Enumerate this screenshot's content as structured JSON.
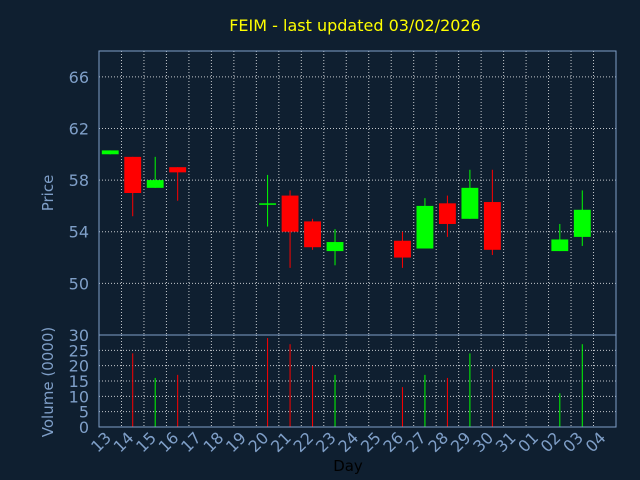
{
  "title": "FEIM - last updated 03/02/2026",
  "colors": {
    "background": "#0f1f30",
    "panel_border": "#7f9fc8",
    "grid": "#ffffff",
    "up": "#00ff00",
    "down": "#ff0000",
    "title": "#ffff00",
    "tick": "#7f9fc8",
    "x_label": "#000000"
  },
  "chart_data": [
    {
      "type": "candlestick",
      "panel": "price",
      "ylabel": "Price",
      "ylim": [
        46,
        68
      ],
      "yticks": [
        50,
        54,
        58,
        62,
        66
      ],
      "grid": true,
      "candles": [
        {
          "day": "13",
          "open": 60.0,
          "close": 60.3,
          "high": 60.3,
          "low": 60.0
        },
        {
          "day": "14",
          "open": 59.8,
          "close": 57.0,
          "high": 59.8,
          "low": 55.2
        },
        {
          "day": "15",
          "open": 57.4,
          "close": 58.0,
          "high": 59.8,
          "low": 57.4
        },
        {
          "day": "16",
          "open": 59.0,
          "close": 58.6,
          "high": 59.0,
          "low": 56.4
        },
        {
          "day": "20",
          "open": 56.2,
          "close": 56.2,
          "high": 58.4,
          "low": 54.4
        },
        {
          "day": "21",
          "open": 56.8,
          "close": 54.0,
          "high": 57.2,
          "low": 51.2
        },
        {
          "day": "22",
          "open": 54.8,
          "close": 52.8,
          "high": 55.0,
          "low": 52.6
        },
        {
          "day": "23",
          "open": 52.5,
          "close": 53.2,
          "high": 54.2,
          "low": 51.4
        },
        {
          "day": "26",
          "open": 53.3,
          "close": 52.0,
          "high": 54.0,
          "low": 51.2
        },
        {
          "day": "27",
          "open": 52.7,
          "close": 56.0,
          "high": 56.6,
          "low": 52.7
        },
        {
          "day": "28",
          "open": 56.2,
          "close": 54.6,
          "high": 56.8,
          "low": 53.6
        },
        {
          "day": "29",
          "open": 55.0,
          "close": 57.4,
          "high": 58.8,
          "low": 55.0
        },
        {
          "day": "30",
          "open": 56.3,
          "close": 52.6,
          "high": 58.8,
          "low": 52.2
        },
        {
          "day": "02",
          "open": 52.5,
          "close": 53.4,
          "high": 54.6,
          "low": 52.5
        },
        {
          "day": "03",
          "open": 53.6,
          "close": 55.7,
          "high": 57.2,
          "low": 52.9
        }
      ]
    },
    {
      "type": "bar",
      "panel": "volume",
      "ylabel": "Volume (0000)",
      "ylim": [
        0,
        30
      ],
      "yticks": [
        0,
        5,
        10,
        15,
        20,
        25,
        30
      ],
      "grid": true,
      "xlabel": "Day",
      "categories": [
        "13",
        "14",
        "15",
        "16",
        "17",
        "18",
        "19",
        "20",
        "21",
        "22",
        "23",
        "24",
        "25",
        "26",
        "27",
        "28",
        "29",
        "30",
        "31",
        "01",
        "02",
        "03",
        "04"
      ],
      "bars": [
        {
          "day": "14",
          "value": 24,
          "direction": "down"
        },
        {
          "day": "15",
          "value": 16,
          "direction": "up"
        },
        {
          "day": "16",
          "value": 17,
          "direction": "down"
        },
        {
          "day": "20",
          "value": 29,
          "direction": "down"
        },
        {
          "day": "21",
          "value": 27,
          "direction": "down"
        },
        {
          "day": "22",
          "value": 20,
          "direction": "down"
        },
        {
          "day": "23",
          "value": 17,
          "direction": "up"
        },
        {
          "day": "26",
          "value": 13,
          "direction": "down"
        },
        {
          "day": "27",
          "value": 17,
          "direction": "up"
        },
        {
          "day": "28",
          "value": 16,
          "direction": "down"
        },
        {
          "day": "29",
          "value": 24,
          "direction": "up"
        },
        {
          "day": "30",
          "value": 19,
          "direction": "down"
        },
        {
          "day": "02",
          "value": 11,
          "direction": "up"
        },
        {
          "day": "03",
          "value": 27,
          "direction": "up"
        }
      ]
    }
  ]
}
